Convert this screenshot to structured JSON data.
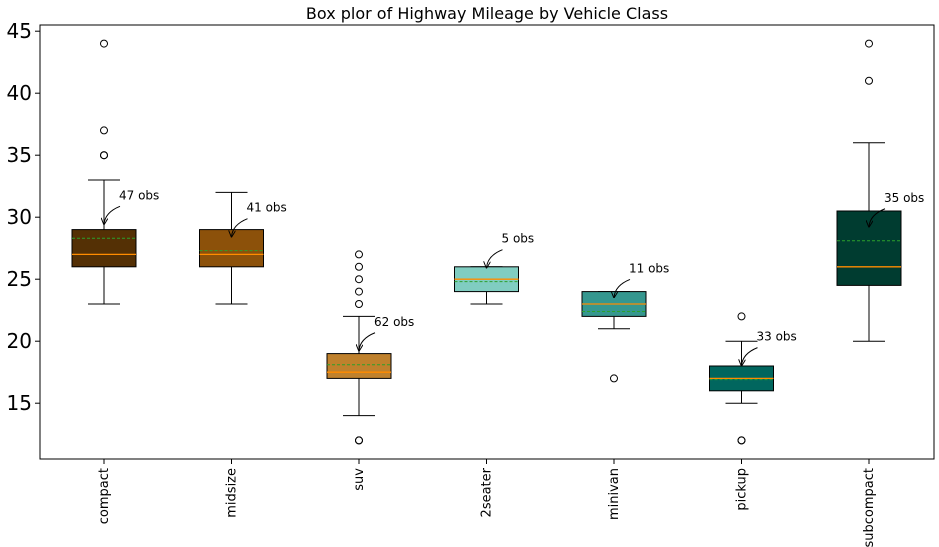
{
  "chart_data": {
    "type": "box",
    "title": "Box plor of Highway Mileage by Vehicle Class",
    "xlabel": "",
    "ylabel": "",
    "ylim": [
      10.5,
      45.5
    ],
    "yticks": [
      15,
      20,
      25,
      30,
      35,
      40,
      45
    ],
    "grid": false,
    "boxes": [
      {
        "category": "compact",
        "color": "#543005",
        "q1": 26,
        "median": 27,
        "mean": 28.3,
        "q3": 29,
        "whisker_low": 23,
        "whisker_high": 33,
        "outliers": [
          35,
          35,
          37,
          44
        ],
        "annotation": "47 obs"
      },
      {
        "category": "midsize",
        "color": "#8c510a",
        "q1": 26,
        "median": 27,
        "mean": 27.3,
        "q3": 29,
        "whisker_low": 23,
        "whisker_high": 32,
        "outliers": [],
        "annotation": "41 obs"
      },
      {
        "category": "suv",
        "color": "#bf812d",
        "q1": 17,
        "median": 17.5,
        "mean": 18.1,
        "q3": 19,
        "whisker_low": 14,
        "whisker_high": 22,
        "outliers": [
          12,
          12,
          23,
          24,
          25,
          26,
          27
        ],
        "annotation": "62 obs"
      },
      {
        "category": "2seater",
        "color": "#80cdc1",
        "q1": 24,
        "median": 25,
        "mean": 24.8,
        "q3": 26,
        "whisker_low": 23,
        "whisker_high": 26,
        "outliers": [],
        "annotation": "5 obs"
      },
      {
        "category": "minivan",
        "color": "#35978f",
        "q1": 22,
        "median": 23,
        "mean": 22.4,
        "q3": 24,
        "whisker_low": 21,
        "whisker_high": 24,
        "outliers": [
          17
        ],
        "annotation": "11 obs"
      },
      {
        "category": "pickup",
        "color": "#01665e",
        "q1": 16,
        "median": 17,
        "mean": 16.9,
        "q3": 18,
        "whisker_low": 15,
        "whisker_high": 20,
        "outliers": [
          12,
          12,
          22
        ],
        "annotation": "33 obs"
      },
      {
        "category": "subcompact",
        "color": "#003c30",
        "q1": 24.5,
        "median": 26,
        "mean": 28.1,
        "q3": 30.5,
        "whisker_low": 20,
        "whisker_high": 36,
        "outliers": [
          41,
          44
        ],
        "annotation": "35 obs"
      }
    ],
    "median_color": "#ff8c00",
    "mean_line_color": "#2ca02c"
  }
}
